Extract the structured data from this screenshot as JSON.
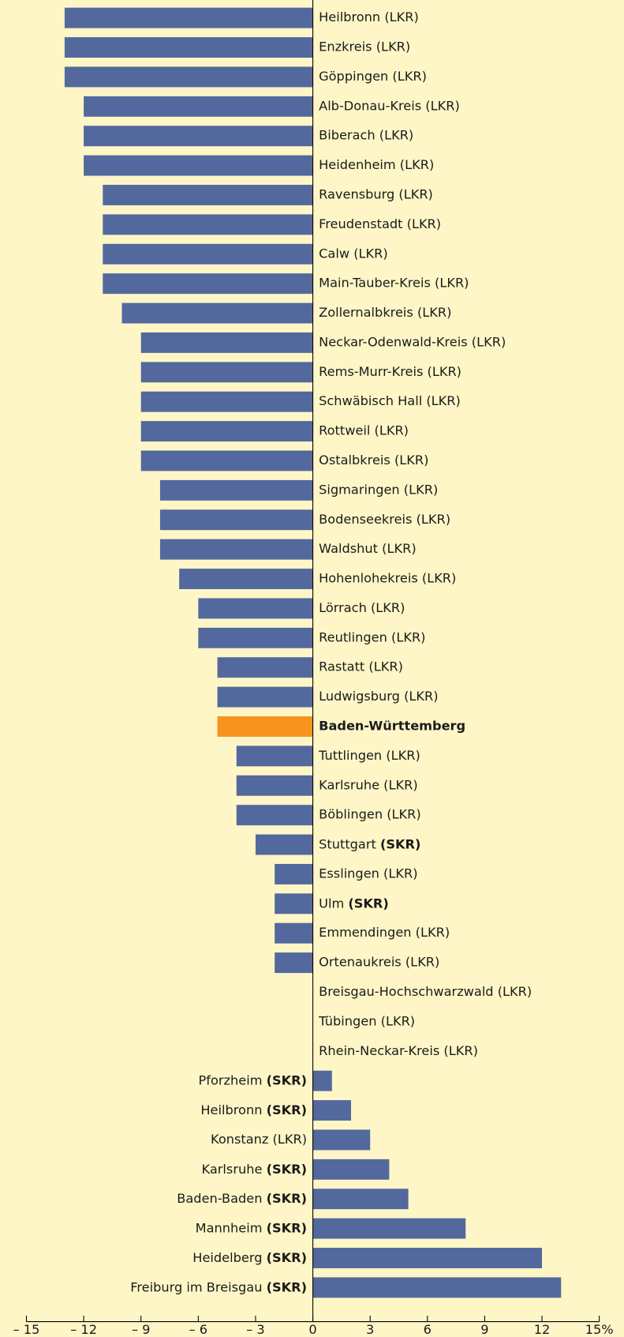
{
  "chart_data": {
    "type": "bar",
    "orientation": "horizontal",
    "categories": [
      "Heilbronn (LKR)",
      "Enzkreis (LKR)",
      "Göppingen (LKR)",
      "Alb-Donau-Kreis (LKR)",
      "Biberach (LKR)",
      "Heidenheim (LKR)",
      "Ravensburg (LKR)",
      "Freudenstadt (LKR)",
      "Calw (LKR)",
      "Main-Tauber-Kreis (LKR)",
      "Zollernalbkreis (LKR)",
      "Neckar-Odenwald-Kreis (LKR)",
      "Rems-Murr-Kreis (LKR)",
      "Schwäbisch Hall (LKR)",
      "Rottweil (LKR)",
      "Ostalbkreis (LKR)",
      "Sigmaringen (LKR)",
      "Bodenseekreis (LKR)",
      "Waldshut (LKR)",
      "Hohenlohekreis (LKR)",
      "Lörrach (LKR)",
      "Reutlingen (LKR)",
      "Rastatt (LKR)",
      "Ludwigsburg (LKR)",
      "Baden-Württemberg",
      "Tuttlingen (LKR)",
      "Karlsruhe (LKR)",
      "Böblingen (LKR)",
      "Stuttgart (SKR)",
      "Esslingen (LKR)",
      "Ulm (SKR)",
      "Emmendingen (LKR)",
      "Ortenaukreis (LKR)",
      "Breisgau-Hochschwarzwald (LKR)",
      "Tübingen (LKR)",
      "Rhein-Neckar-Kreis (LKR)",
      "Pforzheim (SKR)",
      "Heilbronn (SKR)",
      "Konstanz (LKR)",
      "Karlsruhe (SKR)",
      "Baden-Baden (SKR)",
      "Mannheim (SKR)",
      "Heidelberg (SKR)",
      "Freiburg im Breisgau (SKR)"
    ],
    "label_styles": [
      "normal",
      "normal",
      "normal",
      "normal",
      "normal",
      "normal",
      "normal",
      "normal",
      "normal",
      "normal",
      "normal",
      "normal",
      "normal",
      "normal",
      "normal",
      "normal",
      "normal",
      "normal",
      "normal",
      "normal",
      "normal",
      "normal",
      "normal",
      "normal",
      "bold",
      "normal",
      "normal",
      "normal",
      "suffix-bold",
      "normal",
      "suffix-bold",
      "normal",
      "normal",
      "normal",
      "normal",
      "normal",
      "suffix-bold",
      "suffix-bold",
      "normal",
      "suffix-bold",
      "suffix-bold",
      "suffix-bold",
      "suffix-bold",
      "suffix-bold"
    ],
    "values": [
      -13,
      -13,
      -13,
      -12,
      -12,
      -12,
      -11,
      -11,
      -11,
      -11,
      -10,
      -9,
      -9,
      -9,
      -9,
      -9,
      -8,
      -8,
      -8,
      -7,
      -6,
      -6,
      -5,
      -5,
      -5,
      -4,
      -4,
      -4,
      -3,
      -2,
      -2,
      -2,
      -2,
      0,
      0,
      0,
      1,
      2,
      3,
      4,
      5,
      8,
      12,
      13
    ],
    "colors": [
      "#53699d",
      "#53699d",
      "#53699d",
      "#53699d",
      "#53699d",
      "#53699d",
      "#53699d",
      "#53699d",
      "#53699d",
      "#53699d",
      "#53699d",
      "#53699d",
      "#53699d",
      "#53699d",
      "#53699d",
      "#53699d",
      "#53699d",
      "#53699d",
      "#53699d",
      "#53699d",
      "#53699d",
      "#53699d",
      "#53699d",
      "#53699d",
      "#f7941d",
      "#53699d",
      "#53699d",
      "#53699d",
      "#53699d",
      "#53699d",
      "#53699d",
      "#53699d",
      "#53699d",
      "#53699d",
      "#53699d",
      "#53699d",
      "#53699d",
      "#53699d",
      "#53699d",
      "#53699d",
      "#53699d",
      "#53699d",
      "#53699d",
      "#53699d"
    ],
    "xlim": [
      -15,
      15
    ],
    "xticks": [
      {
        "value": -15,
        "label": "– 15"
      },
      {
        "value": -12,
        "label": "– 12"
      },
      {
        "value": -9,
        "label": "– 9"
      },
      {
        "value": -6,
        "label": "– 6"
      },
      {
        "value": -3,
        "label": "– 3"
      },
      0,
      3,
      6,
      9,
      12,
      {
        "value": 15,
        "label": "15%"
      }
    ]
  }
}
